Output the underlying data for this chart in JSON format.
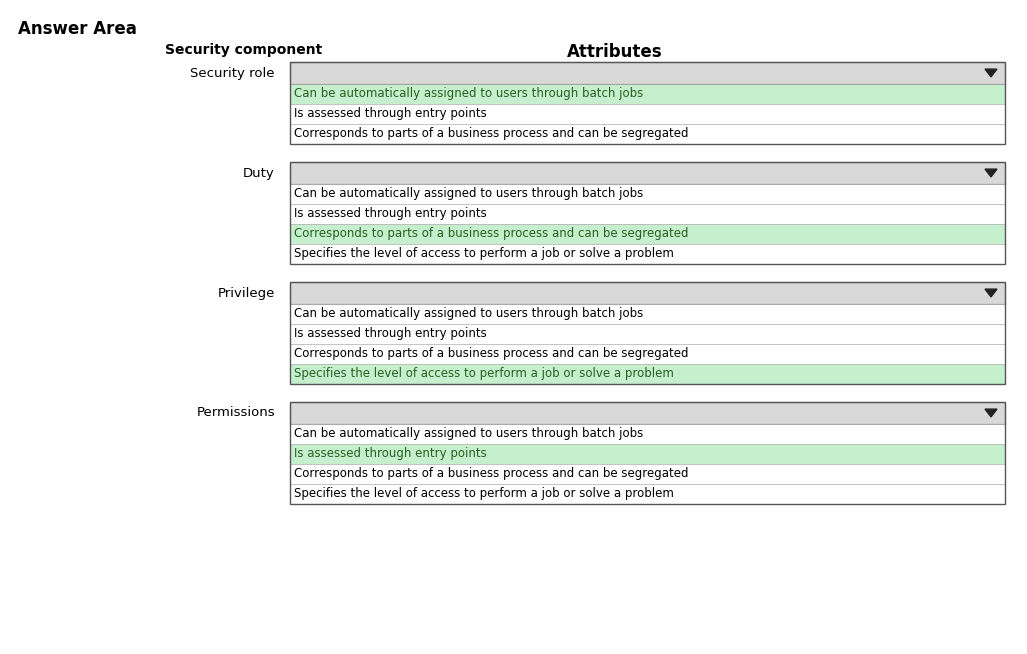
{
  "title": "Answer Area",
  "col1_header": "Security component",
  "col2_header": "Attributes",
  "bg_color": "#ffffff",
  "title_fontsize": 12,
  "header_fontsize": 10,
  "row_fontsize": 8.5,
  "component_fontsize": 9.5,
  "green_highlight": "#c6efce",
  "green_text": "#276221",
  "dropdown_bg": "#d9d9d9",
  "box_border": "#555555",
  "row_border": "#aaaaaa",
  "rows": [
    {
      "component": "Security role",
      "items": [
        {
          "text": "Can be automatically assigned to users through batch jobs",
          "highlight": true
        },
        {
          "text": "Is assessed through entry points",
          "highlight": false
        },
        {
          "text": "Corresponds to parts of a business process and can be segregated",
          "highlight": false
        }
      ]
    },
    {
      "component": "Duty",
      "items": [
        {
          "text": "Can be automatically assigned to users through batch jobs",
          "highlight": false
        },
        {
          "text": "Is assessed through entry points",
          "highlight": false
        },
        {
          "text": "Corresponds to parts of a business process and can be segregated",
          "highlight": true
        },
        {
          "text": "Specifies the level of access to perform a job or solve a problem",
          "highlight": false
        }
      ]
    },
    {
      "component": "Privilege",
      "items": [
        {
          "text": "Can be automatically assigned to users through batch jobs",
          "highlight": false
        },
        {
          "text": "Is assessed through entry points",
          "highlight": false
        },
        {
          "text": "Corresponds to parts of a business process and can be segregated",
          "highlight": false
        },
        {
          "text": "Specifies the level of access to perform a job or solve a problem",
          "highlight": true
        }
      ]
    },
    {
      "component": "Permissions",
      "items": [
        {
          "text": "Can be automatically assigned to users through batch jobs",
          "highlight": false
        },
        {
          "text": "Is assessed through entry points",
          "highlight": true
        },
        {
          "text": "Corresponds to parts of a business process and can be segregated",
          "highlight": false
        },
        {
          "text": "Specifies the level of access to perform a job or solve a problem",
          "highlight": false
        }
      ]
    }
  ],
  "fig_width": 10.27,
  "fig_height": 6.54,
  "dpi": 100
}
